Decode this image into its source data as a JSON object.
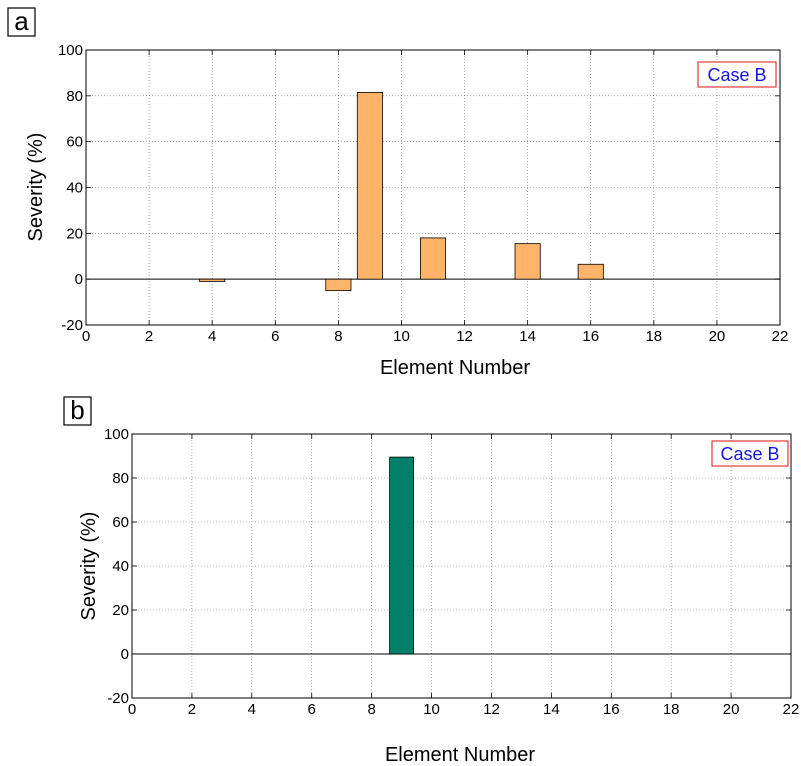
{
  "chart_data": [
    {
      "panel": "a",
      "type": "bar",
      "xlabel": "Element Number",
      "ylabel": "Severity (%)",
      "xlim": [
        0,
        22
      ],
      "ylim": [
        -20,
        100
      ],
      "xticks": [
        0,
        2,
        4,
        6,
        8,
        10,
        12,
        14,
        16,
        18,
        20,
        22
      ],
      "yticks": [
        -20,
        0,
        20,
        40,
        60,
        80,
        100
      ],
      "grid": true,
      "legend": "Case B",
      "legend_position": "top-right",
      "bar_color": "#FFB469",
      "legend_text_color": "#1515E0",
      "legend_border_color": "#E01010",
      "x": [
        4,
        8,
        9,
        11,
        14,
        16
      ],
      "values": [
        -1,
        -5,
        81.5,
        18,
        15.5,
        6.5
      ]
    },
    {
      "panel": "b",
      "type": "bar",
      "xlabel": "Element Number",
      "ylabel": "Severity (%)",
      "xlim": [
        0,
        22
      ],
      "ylim": [
        -20,
        100
      ],
      "xticks": [
        0,
        2,
        4,
        6,
        8,
        10,
        12,
        14,
        16,
        18,
        20,
        22
      ],
      "yticks": [
        -20,
        0,
        20,
        40,
        60,
        80,
        100
      ],
      "grid": true,
      "legend": "Case B",
      "legend_position": "top-right",
      "bar_color": "#00806A",
      "legend_text_color": "#1515E0",
      "legend_border_color": "#E01010",
      "x": [
        9
      ],
      "values": [
        89.5
      ]
    }
  ]
}
